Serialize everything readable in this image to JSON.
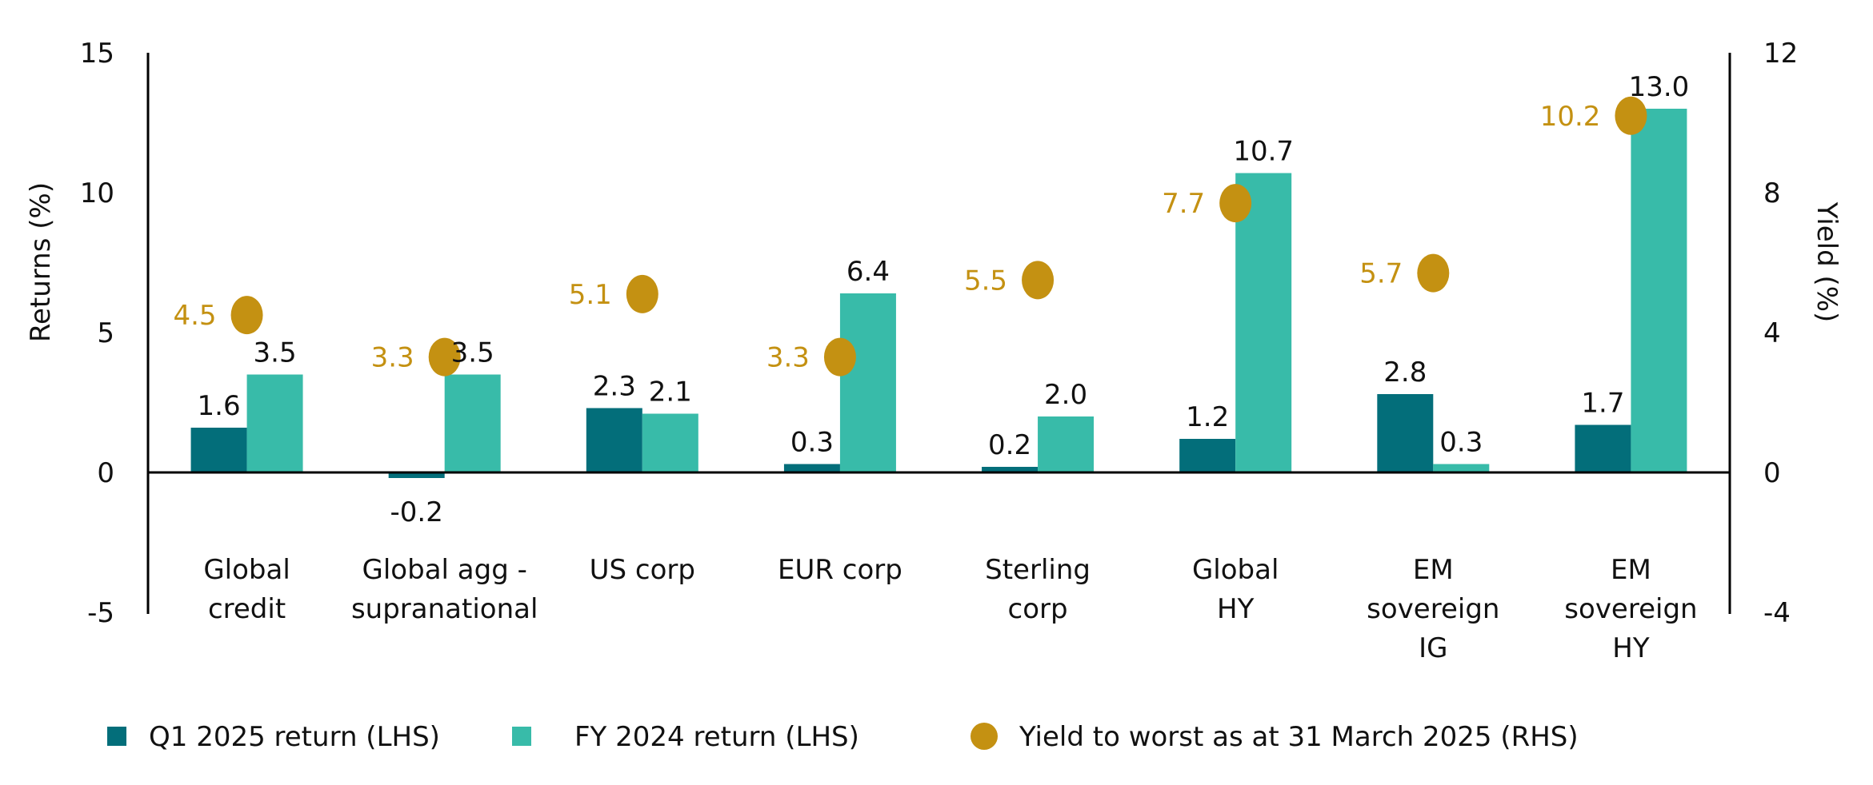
{
  "chart_data": {
    "type": "bar",
    "categories": [
      [
        "Global",
        "credit"
      ],
      [
        "Global agg -",
        "supranational"
      ],
      [
        "US corp"
      ],
      [
        "EUR corp"
      ],
      [
        "Sterling",
        "corp"
      ],
      [
        "Global",
        "HY"
      ],
      [
        "EM",
        "sovereign",
        "IG"
      ],
      [
        "EM",
        "sovereign",
        "HY"
      ]
    ],
    "series": [
      {
        "name": "Q1 2025 return (LHS)",
        "kind": "bar",
        "axis": "left",
        "color": "#036E7A",
        "values": [
          1.6,
          -0.2,
          2.3,
          0.3,
          0.2,
          1.2,
          2.8,
          1.7
        ]
      },
      {
        "name": "FY 2024 return (LHS)",
        "kind": "bar",
        "axis": "left",
        "color": "#38BBA9",
        "values": [
          3.5,
          3.5,
          2.1,
          6.4,
          2.0,
          10.7,
          0.3,
          13.0
        ]
      },
      {
        "name": "Yield to worst as at 31 March 2025 (RHS)",
        "kind": "dot",
        "axis": "right",
        "color": "#C49112",
        "values": [
          4.5,
          3.3,
          5.1,
          3.3,
          5.5,
          7.7,
          5.7,
          10.2
        ]
      }
    ],
    "ylabel": "Returns (%)",
    "ylabel_right": "Yield (%)",
    "ylim": [
      -5,
      15
    ],
    "yticks": [
      -5,
      0,
      5,
      10,
      15
    ],
    "ylim_right": [
      -4,
      12
    ],
    "yticks_right": [
      -4,
      0,
      4,
      8,
      12
    ],
    "grid": false,
    "legend_position": "bottom"
  }
}
